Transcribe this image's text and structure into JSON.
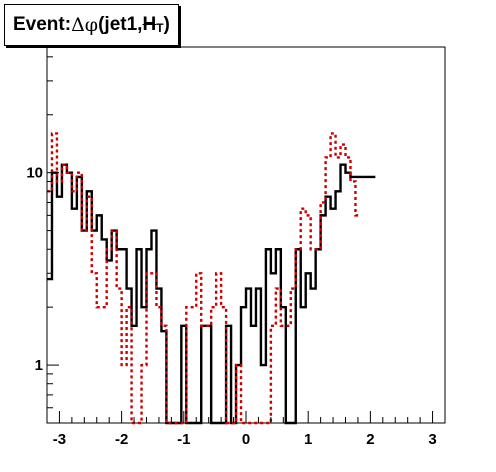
{
  "title": {
    "prefix": "Event: ",
    "symbol": "Δφ",
    "text1": "(jet1,",
    "met": "H",
    "sub": "T",
    "close": ")"
  },
  "chart_data": {
    "type": "histogram",
    "x_range": [
      -3.2,
      3.2
    ],
    "y_log": true,
    "y_range": [
      0.5,
      45
    ],
    "x_ticks": [
      -3,
      -2,
      -1,
      0,
      1,
      2,
      3
    ],
    "x_tick_labels": [
      "-3",
      "-2",
      "-1",
      "0",
      "1",
      "2",
      "3"
    ],
    "y_tick_values": [
      1,
      10
    ],
    "y_tick_labels": [
      "1",
      "10"
    ],
    "bin_edges_start": -3.2,
    "bin_width": 0.08,
    "series": [
      {
        "style": "solid",
        "color": "#000000",
        "values": [
          2.8,
          10,
          7.5,
          11,
          10,
          6.5,
          9.5,
          5,
          8,
          5,
          6,
          4.5,
          3.5,
          5,
          4,
          4,
          2.5,
          1.6,
          4,
          2,
          4,
          5,
          2.5,
          1.5,
          0.4,
          0.5,
          0.5,
          1.6,
          0.5,
          0.5,
          0.5,
          1.6,
          1.6,
          0.4,
          0.5,
          0.5,
          1.6,
          0.5,
          1,
          2,
          2.5,
          1.6,
          2.5,
          1,
          4,
          3,
          4,
          2,
          0.5,
          0.4,
          4,
          2,
          3,
          2.5,
          4,
          6,
          7.5,
          6.5,
          8,
          11,
          10,
          9.5,
          9.5,
          9.5,
          9.5,
          9.5
        ]
      },
      {
        "style": "dashed",
        "color": "#cc0000",
        "values": [
          8,
          16,
          9,
          11,
          10,
          8,
          10,
          5,
          7.5,
          3,
          2,
          2,
          4,
          5,
          2.5,
          1,
          2,
          0.4,
          0.4,
          1,
          3,
          3,
          2,
          1.6,
          0.4,
          0.4,
          0.4,
          0.4,
          2,
          2,
          3,
          1.6,
          1.6,
          2,
          3,
          2,
          0.4,
          0.4,
          1,
          0.4,
          0.4,
          0.4,
          0.4,
          0.5,
          0.4,
          1.6,
          2.5,
          1.6,
          1.6,
          2.5,
          4,
          6.5,
          6,
          4,
          4,
          7,
          12,
          16,
          12,
          14,
          12,
          9,
          6
        ]
      }
    ]
  }
}
